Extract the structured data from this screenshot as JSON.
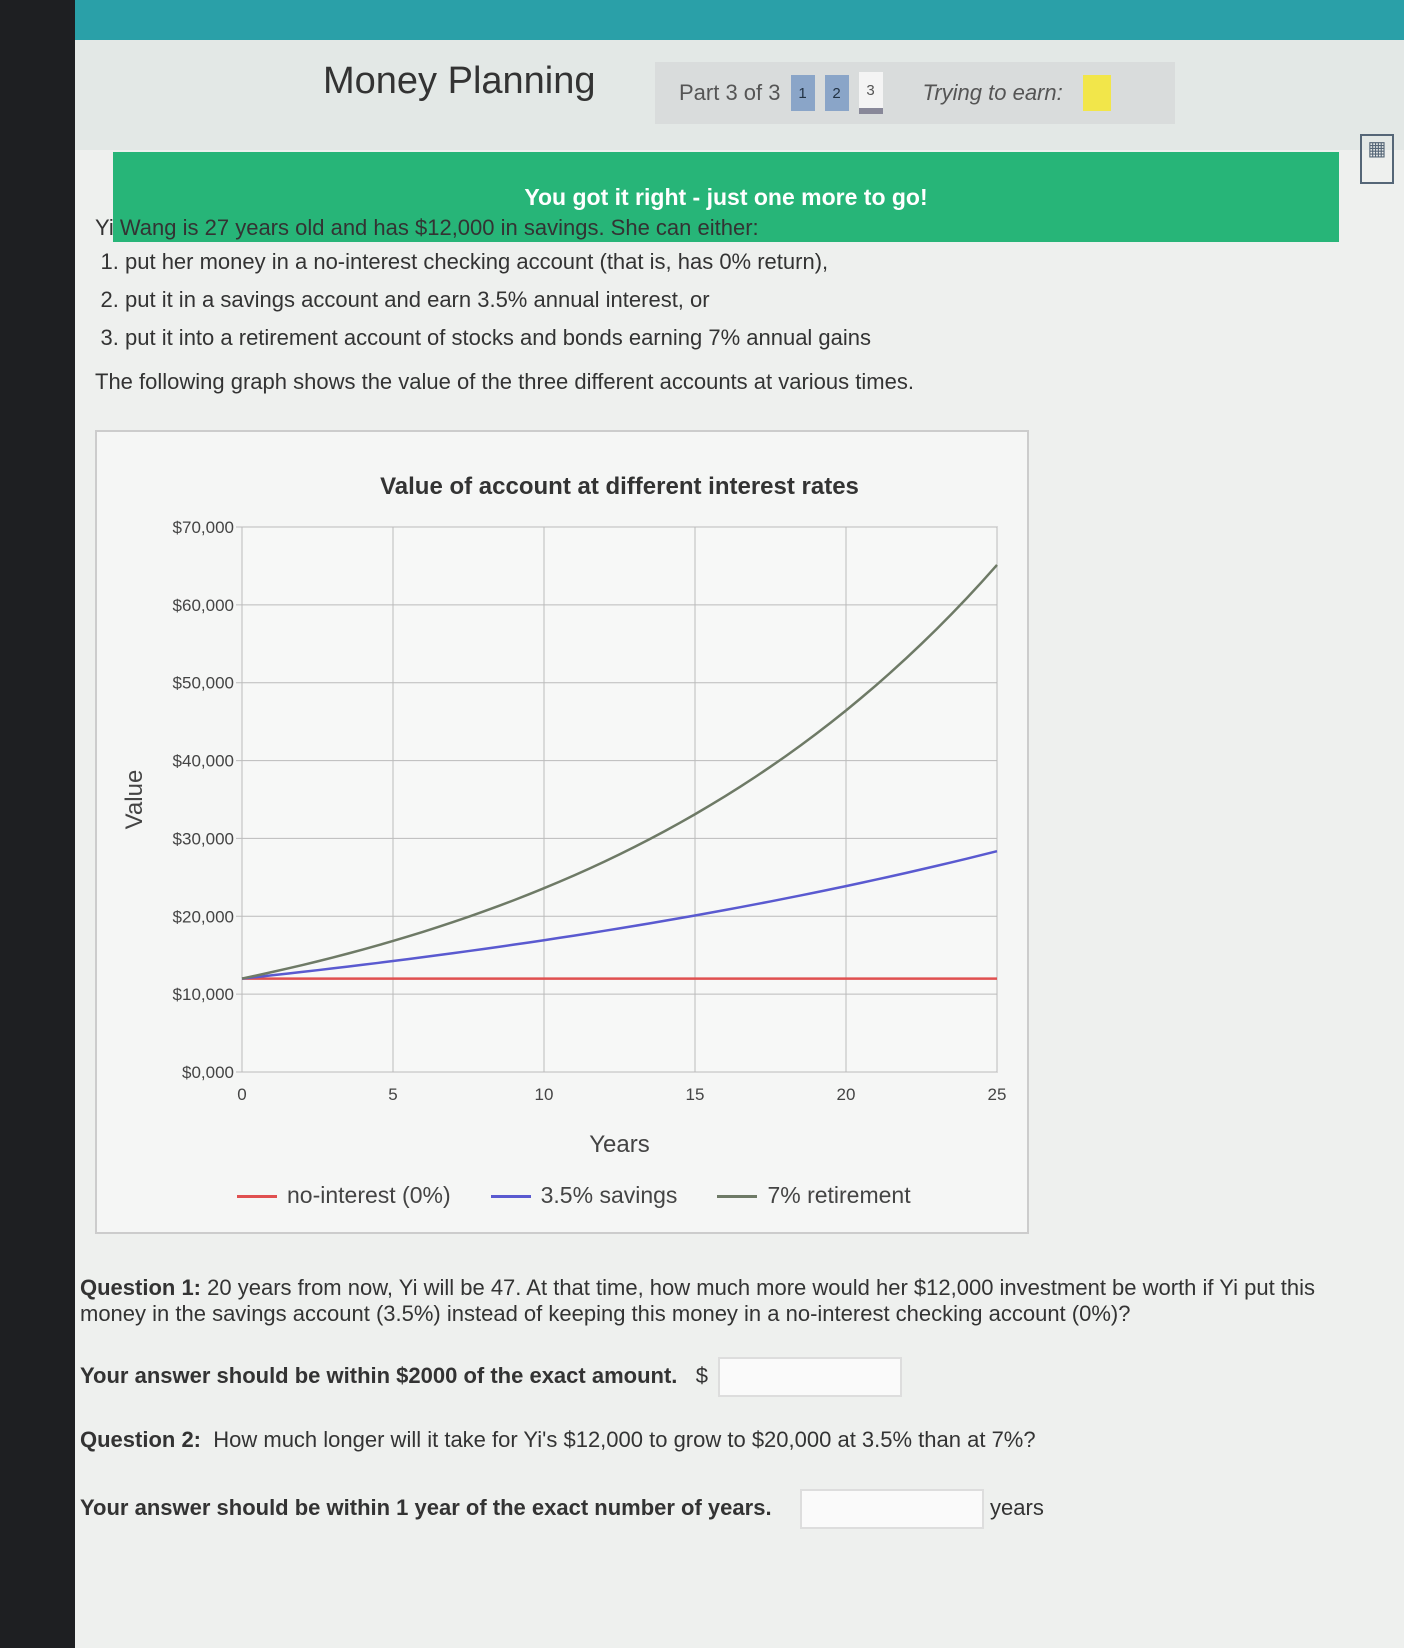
{
  "header": {
    "title": "Money Planning",
    "part": "Part 3 of 3",
    "parts": [
      "1",
      "2",
      "3"
    ],
    "trying": "Trying to earn:",
    "calculator_icon": "calculator-icon"
  },
  "banner": "You got it right - just one more to go!",
  "intro": "Yi Wang is 27 years old and has $12,000 in savings. She can either:",
  "options": [
    "put her money in a no-interest checking account (that is, has 0% return),",
    "put it in a savings account and earn 3.5% annual interest, or",
    "put it into a retirement account of stocks and bonds earning 7% annual gains"
  ],
  "graph_intro": "The following graph shows the value of the three different accounts at various times.",
  "colors": {
    "accent": "#2aa0a8",
    "success": "#27b578",
    "red": "#e05050",
    "blue": "#5a5ad0",
    "gray": "#6e7a66"
  },
  "chart_data": {
    "type": "line",
    "title": "Value of account at different interest rates",
    "xlabel": "Years",
    "ylabel": "Value",
    "xlim": [
      0,
      25
    ],
    "ylim": [
      0,
      70000
    ],
    "grid": true,
    "legend": "bottom",
    "xticks": [
      "0",
      "5",
      "10",
      "15",
      "20",
      "25"
    ],
    "yticks": [
      "$0,000",
      "$10,000",
      "$20,000",
      "$30,000",
      "$40,000",
      "$50,000",
      "$60,000",
      "$70,000"
    ],
    "x": [
      0,
      5,
      10,
      15,
      20,
      25
    ],
    "series": [
      {
        "name": "no-interest (0%)",
        "color": "#e05050",
        "values": [
          12000,
          12000,
          12000,
          12000,
          12000,
          12000
        ]
      },
      {
        "name": "3.5% savings",
        "color": "#5a5ad0",
        "values": [
          12000,
          14252,
          16927,
          20104,
          23878,
          28360
        ]
      },
      {
        "name": "7% retirement",
        "color": "#6e7a66",
        "values": [
          12000,
          16831,
          23606,
          33108,
          46436,
          65129
        ]
      }
    ]
  },
  "questions": {
    "q1_label": "Question 1:",
    "q1": "20 years from now, Yi will be 47. At that time, how much more would her $12,000 investment be worth if Yi put this money in the savings account (3.5%) instead of keeping this money in a no-interest checking account (0%)?",
    "q1_hint": "Your answer should be within $2000 of the exact amount.",
    "currency": "$",
    "q2_label": "Question 2:",
    "q2": "How much longer will it take for Yi's $12,000 to grow to $20,000 at 3.5% than at 7%?",
    "q2_hint": "Your answer should be within 1 year of the exact number of years.",
    "unit": "years"
  }
}
